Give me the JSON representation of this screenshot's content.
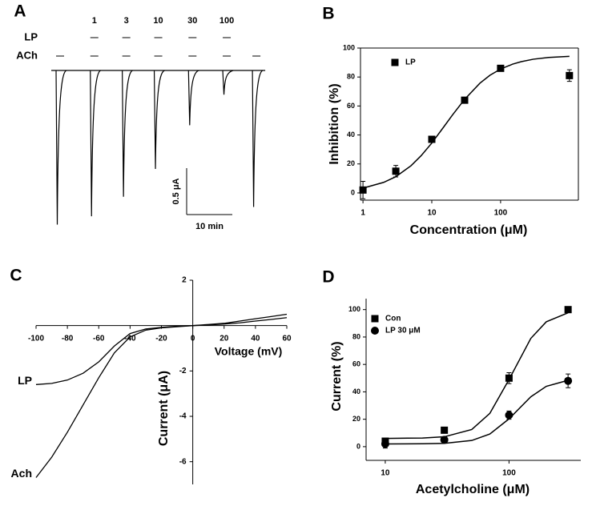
{
  "chart_data": [
    {
      "panel": "A",
      "type": "trace",
      "row_labels": [
        "LP",
        "ACh"
      ],
      "categories": [
        null,
        "1",
        "3",
        "10",
        "30",
        "100",
        null
      ],
      "x": [
        0,
        7.5,
        14.5,
        21.5,
        29,
        36.5,
        43
      ],
      "values": [
        1.66,
        1.57,
        1.36,
        1.06,
        0.59,
        0.26,
        1.47
      ],
      "scale_bar": {
        "y": {
          "value": 0.5,
          "label": "0.5 μA"
        },
        "x": {
          "value": 10,
          "label": "10 min"
        }
      },
      "color": "#000000"
    },
    {
      "panel": "B",
      "type": "scatter",
      "xlabel": "Concentration (μM)",
      "ylabel": "Inhibition (%)",
      "log_x": true,
      "box": true,
      "xlim": [
        0.92,
        1350
      ],
      "xticks": [
        1,
        10,
        100
      ],
      "ylim": [
        -5,
        100
      ],
      "yticks": [
        0,
        20,
        40,
        60,
        80,
        100
      ],
      "legend": "upper left",
      "series": [
        {
          "name": "LP",
          "color": "#000000",
          "marker": "square",
          "x": [
            1,
            3,
            10,
            30,
            100,
            1000
          ],
          "values": [
            2,
            15,
            37,
            64,
            86,
            81
          ],
          "errors": [
            6,
            4,
            2,
            2,
            2,
            4
          ],
          "fit": {
            "x": [
              1,
              2,
              3,
              5,
              7,
              10,
              15,
              20,
              30,
              50,
              70,
              100,
              150,
              200,
              300,
              500,
              1000
            ],
            "values": [
              3.3,
              7.3,
              11.2,
              18.8,
              25.7,
              34.4,
              45.7,
              53.8,
              64.6,
              75.7,
              81.2,
              85.5,
              88.9,
              90.6,
              92.3,
              93.5,
              94.3
            ]
          }
        }
      ]
    },
    {
      "panel": "C",
      "type": "line",
      "xlabel": "Voltage (mV)",
      "ylabel": "Current (μA)",
      "xlim": [
        -100,
        60
      ],
      "xticks": [
        -100,
        -80,
        -60,
        -40,
        -20,
        0,
        20,
        40,
        60
      ],
      "ylim": [
        -7,
        2
      ],
      "yticks": [
        2,
        -2,
        -4,
        -6
      ],
      "x": [
        -100,
        -90,
        -80,
        -70,
        -60,
        -50,
        -40,
        -30,
        -20,
        -10,
        0,
        10,
        20,
        30,
        40,
        50,
        60
      ],
      "series": [
        {
          "name": "LP",
          "color": "#000000",
          "values": [
            -2.6,
            -2.55,
            -2.4,
            -2.1,
            -1.6,
            -0.9,
            -0.35,
            -0.15,
            -0.08,
            -0.03,
            0,
            0.03,
            0.07,
            0.12,
            0.2,
            0.27,
            0.35
          ]
        },
        {
          "name": "Ach",
          "color": "#000000",
          "values": [
            -6.7,
            -5.8,
            -4.7,
            -3.5,
            -2.3,
            -1.2,
            -0.5,
            -0.2,
            -0.1,
            -0.05,
            0,
            0.05,
            0.1,
            0.2,
            0.3,
            0.4,
            0.5
          ]
        }
      ]
    },
    {
      "panel": "D",
      "type": "scatter",
      "xlabel": "Acetylcholine (μM)",
      "ylabel": "Current (%)",
      "log_x": true,
      "box": false,
      "xlim": [
        7,
        380
      ],
      "xticks": [
        10,
        100
      ],
      "ylim": [
        -10,
        108
      ],
      "yticks": [
        0,
        20,
        40,
        60,
        80,
        100
      ],
      "legend": "upper left",
      "series": [
        {
          "name": "Con",
          "color": "#000000",
          "marker": "square",
          "x": [
            10,
            30,
            100,
            300
          ],
          "values": [
            4,
            12,
            50,
            100
          ],
          "errors": [
            1,
            2,
            4,
            1
          ],
          "fit": {
            "x": [
              10,
              20,
              30,
              50,
              70,
              100,
              150,
              200,
              300
            ],
            "values": [
              6.0,
              6.3,
              7.2,
              12.5,
              24.3,
              49.0,
              79.0,
              91.1,
              97.7
            ]
          }
        },
        {
          "name": "LP 30 μM",
          "color": "#000000",
          "marker": "circle",
          "x": [
            10,
            30,
            100,
            300
          ],
          "values": [
            2,
            5,
            23,
            48
          ],
          "errors": [
            3,
            1,
            3,
            5
          ],
          "fit": {
            "x": [
              10,
              20,
              30,
              50,
              70,
              100,
              150,
              200,
              300
            ],
            "values": [
              2.0,
              2.1,
              2.4,
              4.5,
              9.2,
              20.3,
              36.4,
              44.0,
              48.4
            ]
          }
        }
      ]
    }
  ]
}
